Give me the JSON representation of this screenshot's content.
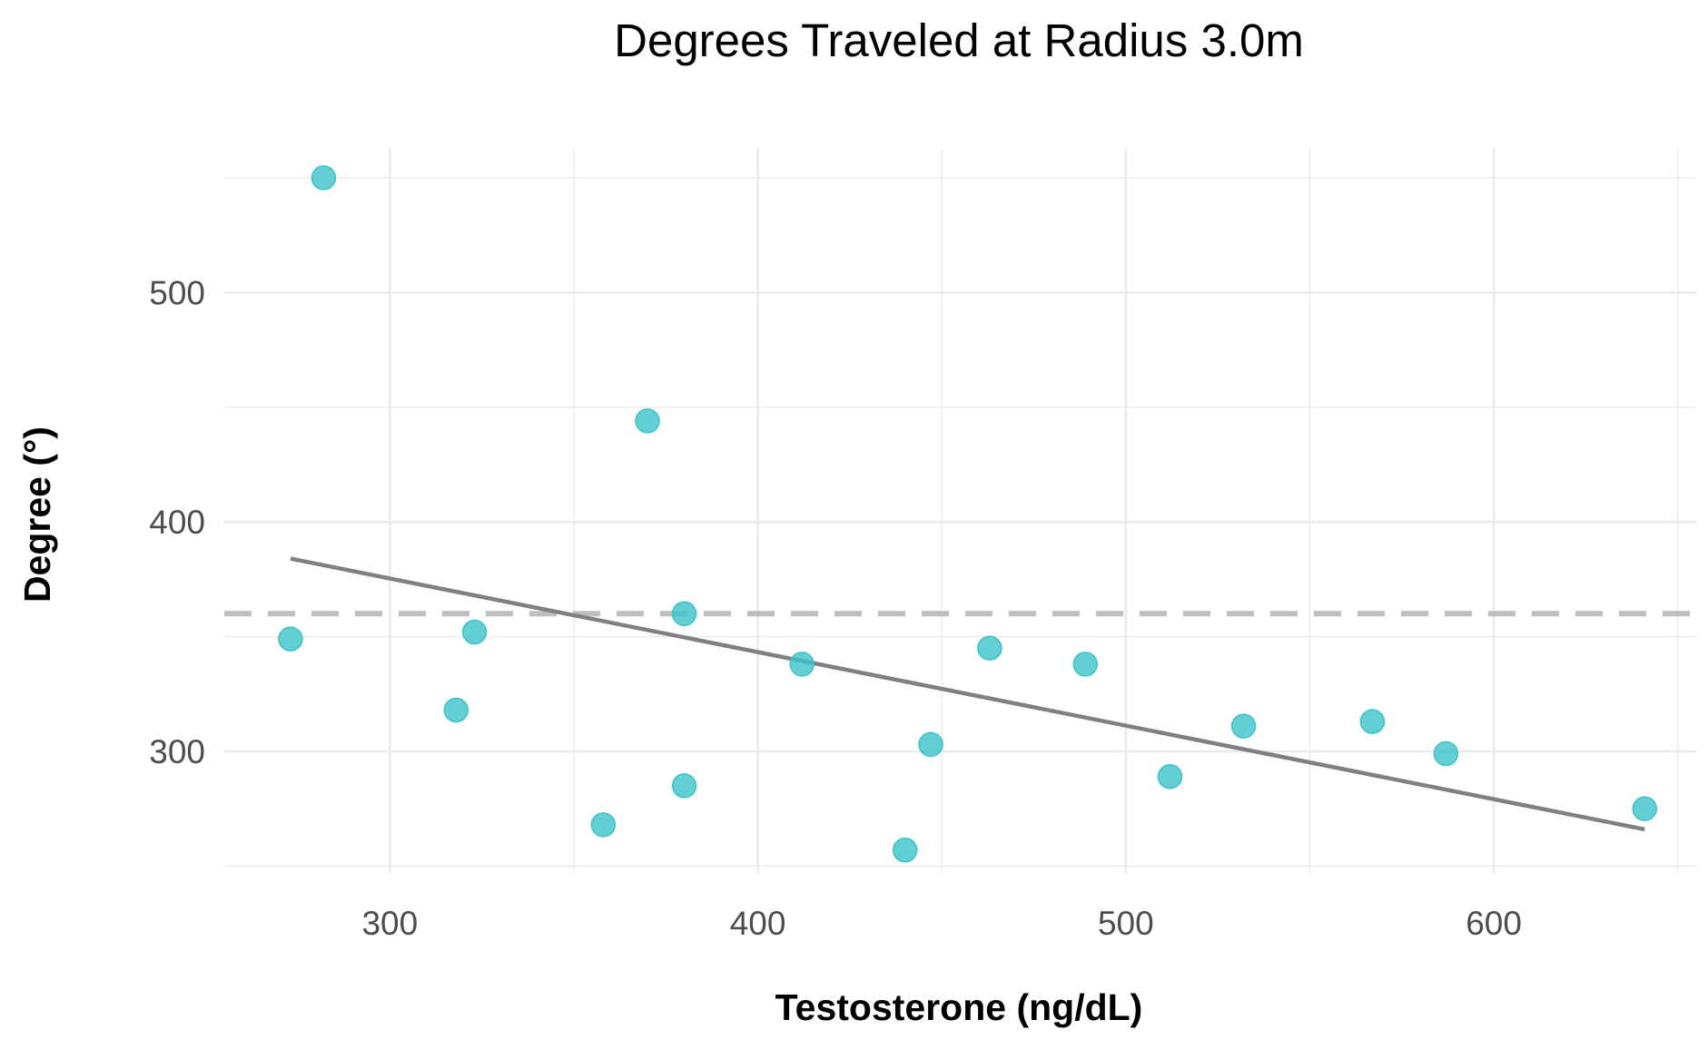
{
  "chart_data": {
    "type": "scatter",
    "title": "Degrees Traveled at Radius 3.0m",
    "xlabel": "Testosterone (ng/dL)",
    "ylabel": "Degree (°)",
    "xlim": [
      255,
      655
    ],
    "ylim": [
      247,
      563
    ],
    "xticks": [
      300,
      400,
      500,
      600
    ],
    "yticks": [
      300,
      400,
      500
    ],
    "xtick_labels": [
      "300",
      "400",
      "500",
      "600"
    ],
    "ytick_labels": [
      "300",
      "400",
      "500"
    ],
    "x_minor": [
      350,
      450,
      550,
      650
    ],
    "y_minor": [
      250,
      350,
      450,
      550
    ],
    "grid": true,
    "series": [
      {
        "kind": "points",
        "color": "#3cc3c9",
        "points": [
          {
            "x": 273,
            "y": 349
          },
          {
            "x": 282,
            "y": 550
          },
          {
            "x": 318,
            "y": 318
          },
          {
            "x": 323,
            "y": 352
          },
          {
            "x": 358,
            "y": 268
          },
          {
            "x": 370,
            "y": 444
          },
          {
            "x": 380,
            "y": 285
          },
          {
            "x": 380,
            "y": 360
          },
          {
            "x": 412,
            "y": 338
          },
          {
            "x": 440,
            "y": 257
          },
          {
            "x": 447,
            "y": 303
          },
          {
            "x": 463,
            "y": 345
          },
          {
            "x": 489,
            "y": 338
          },
          {
            "x": 512,
            "y": 289
          },
          {
            "x": 532,
            "y": 311
          },
          {
            "x": 567,
            "y": 313
          },
          {
            "x": 587,
            "y": 299
          },
          {
            "x": 641,
            "y": 275
          }
        ]
      },
      {
        "kind": "regression-line",
        "color": "#808080",
        "points": [
          {
            "x": 273,
            "y": 384
          },
          {
            "x": 641,
            "y": 266
          }
        ]
      },
      {
        "kind": "reference-line",
        "color": "#bebebe",
        "dashed": true,
        "y": 360
      }
    ]
  }
}
